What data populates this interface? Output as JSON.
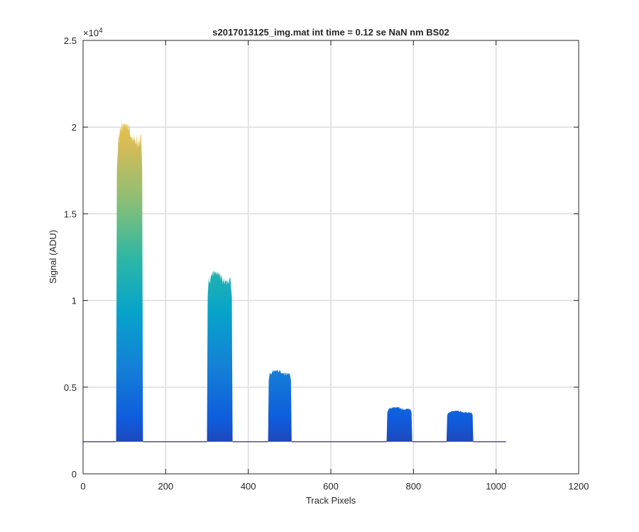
{
  "chart_data": {
    "type": "area",
    "title": "s2017013125_img.mat int time = 0.12 se  NaN nm BS02",
    "xlabel": "Track Pixels",
    "ylabel": "Signal (ADU)",
    "xlim": [
      0,
      1200
    ],
    "ylim": [
      0,
      25000
    ],
    "x_ticks": [
      0,
      200,
      400,
      600,
      800,
      1000,
      1200
    ],
    "x_tick_labels": [
      "0",
      "200",
      "400",
      "600",
      "800",
      "1000",
      "1200"
    ],
    "y_ticks": [
      0,
      5000,
      10000,
      15000,
      20000,
      25000
    ],
    "y_tick_labels": [
      "0",
      "0.5",
      "1",
      "1.5",
      "2",
      "2.5"
    ],
    "y_exponent_label": "×10",
    "y_exponent_power": "4",
    "grid": true,
    "baseline": 1850,
    "data_x_range": [
      0,
      1024
    ],
    "colormap": "parula",
    "colormap_stops": [
      "#352a87",
      "#0f5cdd",
      "#1481d6",
      "#06a4ca",
      "#2eb7a4",
      "#87bf77",
      "#d1bb59",
      "#fec832",
      "#f9fb0e"
    ],
    "peaks": [
      {
        "start": 80,
        "end": 145,
        "peak": 20300
      },
      {
        "start": 300,
        "end": 362,
        "peak": 11700
      },
      {
        "start": 448,
        "end": 505,
        "peak": 6000
      },
      {
        "start": 735,
        "end": 797,
        "peak": 3850
      },
      {
        "start": 880,
        "end": 945,
        "peak": 3650
      }
    ]
  }
}
